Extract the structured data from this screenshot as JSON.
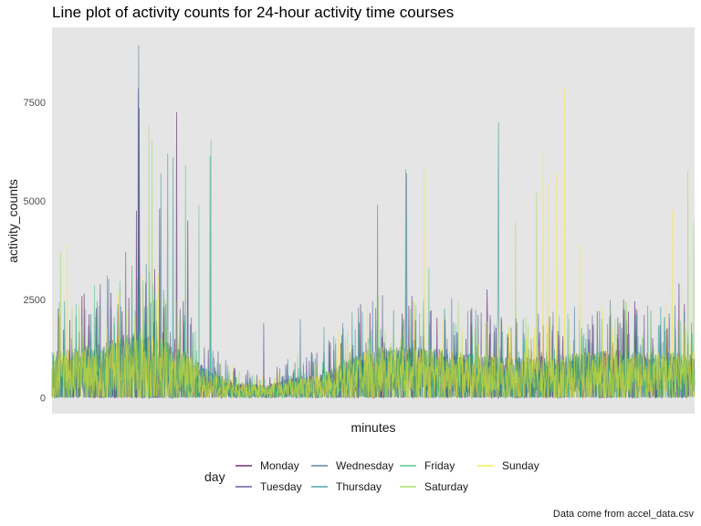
{
  "chart_data": {
    "type": "line",
    "title": "Line plot of activity counts for 24-hour activity time courses",
    "xlabel": "minutes",
    "ylabel": "activity_counts",
    "caption": "Data come from accel_data.csv",
    "y_ticks": [
      0,
      2500,
      5000,
      7500
    ],
    "y_tick_labels": [
      "0",
      "2500",
      "5000",
      "7500"
    ],
    "ylim": [
      -400,
      9400
    ],
    "xlim": [
      1,
      1440
    ],
    "x_ticks_shown": false,
    "grid": "off",
    "panel_background": "#e5e5e5",
    "legend": {
      "title": "day",
      "position": "bottom",
      "columns": 4,
      "entries": [
        "Monday",
        "Tuesday",
        "Wednesday",
        "Thursday",
        "Friday",
        "Saturday",
        "Sunday"
      ]
    },
    "series": [
      {
        "name": "Monday",
        "color": "#440154"
      },
      {
        "name": "Tuesday",
        "color": "#443983"
      },
      {
        "name": "Wednesday",
        "color": "#31688e"
      },
      {
        "name": "Thursday",
        "color": "#21918c"
      },
      {
        "name": "Friday",
        "color": "#35b779"
      },
      {
        "name": "Saturday",
        "color": "#90d743"
      },
      {
        "name": "Sunday",
        "color": "#fde725"
      }
    ],
    "profile_points": {
      "minutes": [
        1,
        60,
        120,
        180,
        200,
        240,
        300,
        360,
        420,
        480,
        540,
        600,
        660,
        720,
        780,
        840,
        900,
        960,
        1020,
        1080,
        1140,
        1200,
        1260,
        1320,
        1380,
        1440
      ],
      "typical_counts": [
        900,
        1000,
        1100,
        1300,
        1300,
        1200,
        900,
        500,
        300,
        250,
        400,
        450,
        750,
        1000,
        1000,
        1000,
        950,
        850,
        800,
        800,
        850,
        900,
        950,
        900,
        900,
        900
      ]
    },
    "peaks": [
      {
        "series": "Wednesday",
        "minute": 195,
        "count": 8950
      },
      {
        "series": "Tuesday",
        "minute": 194,
        "count": 7850
      },
      {
        "series": "Monday",
        "minute": 196,
        "count": 7350
      },
      {
        "series": "Monday",
        "minute": 280,
        "count": 7250
      },
      {
        "series": "Saturday",
        "minute": 218,
        "count": 6900
      },
      {
        "series": "Saturday",
        "minute": 225,
        "count": 6550
      },
      {
        "series": "Thursday",
        "minute": 260,
        "count": 6200
      },
      {
        "series": "Friday",
        "minute": 357,
        "count": 6550
      },
      {
        "series": "Thursday",
        "minute": 355,
        "count": 6150
      },
      {
        "series": "Thursday",
        "minute": 272,
        "count": 6100
      },
      {
        "series": "Friday",
        "minute": 300,
        "count": 5900
      },
      {
        "series": "Thursday",
        "minute": 245,
        "count": 5700
      },
      {
        "series": "Monday",
        "minute": 190,
        "count": 4750
      },
      {
        "series": "Monday",
        "minute": 242,
        "count": 4800
      },
      {
        "series": "Friday",
        "minute": 330,
        "count": 4900
      },
      {
        "series": "Monday",
        "minute": 305,
        "count": 4500
      },
      {
        "series": "Saturday",
        "minute": 20,
        "count": 3700
      },
      {
        "series": "Sunday",
        "minute": 35,
        "count": 3900
      },
      {
        "series": "Tuesday",
        "minute": 166,
        "count": 3700
      },
      {
        "series": "Wednesday",
        "minute": 125,
        "count": 3100
      },
      {
        "series": "Wednesday",
        "minute": 730,
        "count": 4900
      },
      {
        "series": "Thursday",
        "minute": 793,
        "count": 5800
      },
      {
        "series": "Wednesday",
        "minute": 795,
        "count": 5700
      },
      {
        "series": "Thursday",
        "minute": 1001,
        "count": 7000
      },
      {
        "series": "Thursday",
        "minute": 1000,
        "count": 5250
      },
      {
        "series": "Sunday",
        "minute": 834,
        "count": 5850
      },
      {
        "series": "Sunday",
        "minute": 1101,
        "count": 6250
      },
      {
        "series": "Sunday",
        "minute": 1149,
        "count": 7850
      },
      {
        "series": "Sunday",
        "minute": 1131,
        "count": 5700
      },
      {
        "series": "Sunday",
        "minute": 1111,
        "count": 5400
      },
      {
        "series": "Saturday",
        "minute": 1086,
        "count": 5200
      },
      {
        "series": "Saturday",
        "minute": 1039,
        "count": 4450
      },
      {
        "series": "Sunday",
        "minute": 1183,
        "count": 3900
      },
      {
        "series": "Saturday",
        "minute": 1425,
        "count": 5750
      },
      {
        "series": "Saturday",
        "minute": 1438,
        "count": 4450
      },
      {
        "series": "Sunday",
        "minute": 1390,
        "count": 4750
      },
      {
        "series": "Wednesday",
        "minute": 557,
        "count": 2000
      },
      {
        "series": "Tuesday",
        "minute": 475,
        "count": 1900
      },
      {
        "series": "Thursday",
        "minute": 610,
        "count": 1800
      },
      {
        "series": "Friday",
        "minute": 845,
        "count": 3300
      },
      {
        "series": "Monday",
        "minute": 975,
        "count": 2750
      },
      {
        "series": "Sunday",
        "minute": 1253,
        "count": 2300
      },
      {
        "series": "Monday",
        "minute": 1405,
        "count": 2900
      }
    ]
  }
}
